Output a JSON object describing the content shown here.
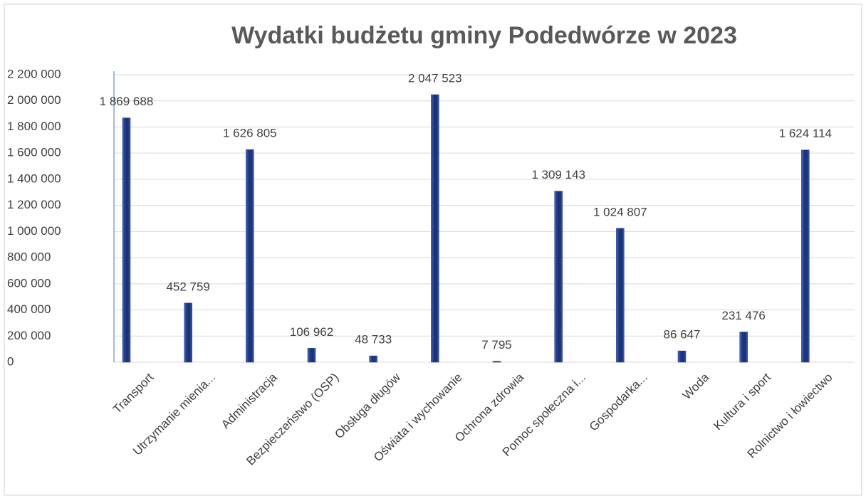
{
  "chart_data": {
    "type": "bar",
    "title": "Wydatki budżetu gminy Podedwórze w 2023",
    "categories": [
      "Transport",
      "Utrzymanie mienia...",
      "Administracja",
      "Bezpieczeństwo (OSP)",
      "Obsługa długów",
      "Oświata i wychowanie",
      "Ochrona zdrowia",
      "Pomoc społeczna i...",
      "Gospodarka...",
      "Woda",
      "Kultura i sport",
      "Rolnictwo i łowiectwo"
    ],
    "values": [
      1869688,
      452759,
      1626805,
      106962,
      48733,
      2047523,
      7795,
      1309143,
      1024807,
      86647,
      231476,
      1624114
    ],
    "value_labels": [
      "1 869 688",
      "452 759",
      "1 626 805",
      "106 962",
      "48 733",
      "2 047 523",
      "7 795",
      "1 309 143",
      "1 024 807",
      "86 647",
      "231 476",
      "1 624 114"
    ],
    "color": "#1f3a8a",
    "ylim": [
      0,
      2200000
    ],
    "yticks": [
      0,
      {
        "value": 200000,
        "label": "200 000"
      },
      {
        "value": 400000,
        "label": "400 000"
      },
      {
        "value": 600000,
        "label": "600 000"
      },
      {
        "value": 800000,
        "label": "800 000"
      },
      {
        "value": 1000000,
        "label": "1 000 000"
      },
      {
        "value": 1200000,
        "label": "1 200 000"
      },
      {
        "value": 1400000,
        "label": "1 400 000"
      },
      {
        "value": 1600000,
        "label": "1 600 000"
      },
      {
        "value": 1800000,
        "label": "1 800 000"
      },
      {
        "value": 2000000,
        "label": "2 000 000"
      },
      {
        "value": 2200000,
        "label": "2 200 000"
      }
    ],
    "grid": true
  }
}
